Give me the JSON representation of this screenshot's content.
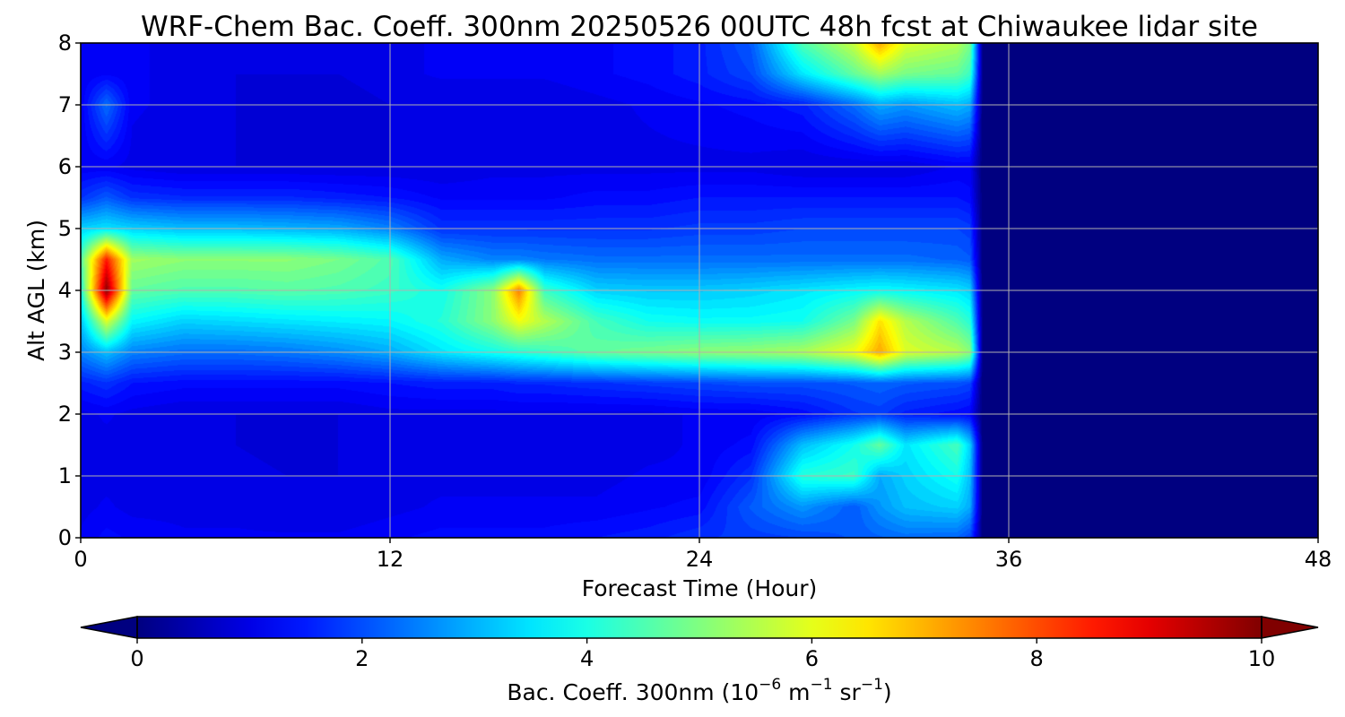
{
  "chart_data": {
    "type": "heatmap",
    "title": "WRF-Chem Bac. Coeff. 300nm  20250526 00UTC 48h fcst at Chiwaukee lidar site",
    "xlabel": "Forecast Time (Hour)",
    "ylabel": "Alt AGL (km)",
    "xlim": [
      0,
      48
    ],
    "ylim": [
      0,
      8
    ],
    "xticks": [
      "0",
      "12",
      "24",
      "36",
      "48"
    ],
    "yticks": [
      "0",
      "1",
      "2",
      "3",
      "4",
      "5",
      "6",
      "7",
      "8"
    ],
    "grid": true,
    "colormap": "jet",
    "colorbar": {
      "label_main": "Bac. Coeff. 300nm  (10",
      "exp1": "−6",
      "unit_m": " m",
      "exp2": "−1",
      "unit_sr": " sr",
      "exp3": "−1",
      "label_close": ")",
      "range": [
        0,
        10
      ],
      "ticks": [
        "0",
        "2",
        "4",
        "6",
        "8",
        "10"
      ],
      "extend": "both",
      "orientation": "horizontal"
    },
    "x": [
      0,
      1,
      2,
      4,
      6,
      8,
      10,
      12,
      14,
      16,
      17,
      18,
      20,
      22,
      24,
      26,
      28,
      30,
      31,
      32,
      34,
      34.5,
      35,
      36,
      48
    ],
    "y": [
      0,
      0.5,
      1,
      1.5,
      2,
      2.5,
      3,
      3.5,
      4,
      4.5,
      5,
      5.5,
      6,
      7,
      7.5,
      8
    ],
    "z": [
      [
        1.2,
        1.4,
        1.3,
        1.2,
        1.2,
        1.2,
        1.2,
        1.3,
        1.4,
        1.4,
        1.4,
        1.4,
        1.5,
        1.6,
        1.8,
        1.9,
        2.0,
        2.2,
        2.3,
        2.4,
        2.3,
        2.0,
        0,
        0,
        0
      ],
      [
        1.1,
        1.2,
        1.1,
        1.1,
        1.1,
        1.0,
        1.0,
        1.1,
        1.2,
        1.2,
        1.2,
        1.2,
        1.2,
        1.3,
        1.4,
        2.2,
        2.8,
        2.2,
        2.8,
        3.2,
        3.4,
        3.0,
        0,
        0,
        0
      ],
      [
        1.1,
        1.1,
        1.1,
        1.1,
        1.1,
        1.0,
        1.0,
        1.1,
        1.1,
        1.1,
        1.1,
        1.1,
        1.1,
        1.2,
        1.2,
        1.8,
        4.2,
        4.4,
        3.0,
        3.4,
        4.0,
        3.2,
        0,
        0,
        0
      ],
      [
        1.1,
        1.1,
        1.1,
        1.0,
        1.0,
        0.9,
        1.0,
        1.0,
        1.0,
        1.0,
        1.0,
        1.0,
        1.0,
        1.1,
        1.2,
        1.4,
        3.2,
        4.0,
        4.8,
        3.6,
        4.5,
        3.4,
        0,
        0,
        0
      ],
      [
        1.1,
        1.2,
        1.1,
        1.0,
        1.0,
        1.0,
        1.0,
        1.1,
        1.1,
        1.1,
        1.1,
        1.1,
        1.1,
        1.1,
        1.2,
        1.2,
        1.4,
        1.8,
        1.9,
        1.6,
        1.4,
        1.3,
        0,
        0,
        0
      ],
      [
        1.6,
        1.8,
        1.5,
        1.4,
        1.4,
        1.4,
        1.4,
        1.5,
        1.6,
        1.6,
        1.7,
        1.7,
        1.8,
        1.9,
        2.0,
        2.1,
        2.1,
        2.2,
        2.3,
        2.2,
        2.1,
        2.0,
        0,
        0,
        0
      ],
      [
        2.6,
        3.2,
        2.6,
        2.4,
        2.4,
        2.5,
        2.7,
        3.0,
        3.6,
        4.0,
        4.2,
        4.4,
        4.8,
        5.0,
        5.2,
        5.3,
        5.5,
        6.2,
        7.2,
        6.0,
        5.6,
        5.2,
        0,
        0,
        0
      ],
      [
        3.2,
        6.0,
        3.8,
        3.4,
        3.5,
        3.6,
        3.7,
        3.8,
        4.2,
        5.2,
        6.2,
        5.6,
        4.5,
        4.0,
        3.9,
        3.9,
        4.0,
        5.0,
        6.6,
        5.6,
        4.6,
        4.2,
        0,
        0,
        0
      ],
      [
        4.0,
        10.0,
        4.8,
        4.6,
        4.6,
        4.7,
        4.6,
        4.4,
        4.0,
        5.2,
        7.6,
        4.4,
        3.4,
        3.3,
        3.3,
        3.4,
        3.6,
        3.8,
        3.9,
        3.8,
        3.6,
        3.4,
        0,
        0,
        0
      ],
      [
        4.6,
        8.6,
        5.4,
        5.2,
        5.2,
        5.2,
        5.0,
        4.6,
        3.0,
        2.6,
        2.6,
        2.5,
        2.4,
        2.4,
        2.4,
        2.4,
        2.4,
        2.4,
        2.4,
        2.4,
        2.3,
        2.2,
        0,
        0,
        0
      ],
      [
        3.4,
        3.6,
        3.4,
        3.2,
        3.2,
        3.1,
        3.0,
        2.6,
        1.8,
        1.8,
        1.8,
        1.8,
        1.8,
        1.8,
        1.9,
        1.9,
        2.0,
        2.0,
        2.0,
        2.0,
        2.0,
        1.9,
        0,
        0,
        0
      ],
      [
        1.8,
        2.2,
        1.8,
        1.7,
        1.7,
        1.7,
        1.6,
        1.5,
        1.3,
        1.3,
        1.3,
        1.3,
        1.4,
        1.4,
        1.5,
        1.5,
        1.5,
        1.5,
        1.5,
        1.5,
        1.5,
        1.4,
        0,
        0,
        0
      ],
      [
        1.2,
        1.2,
        1.1,
        1.0,
        1.0,
        1.0,
        1.0,
        1.0,
        1.0,
        1.1,
        1.1,
        1.1,
        1.1,
        1.1,
        1.1,
        1.1,
        1.0,
        1.0,
        1.0,
        1.0,
        1.2,
        1.2,
        0,
        0,
        0
      ],
      [
        1.2,
        2.4,
        1.2,
        1.1,
        1.0,
        0.9,
        0.9,
        1.0,
        1.0,
        1.0,
        1.0,
        1.0,
        1.1,
        1.2,
        1.3,
        1.4,
        1.6,
        2.4,
        3.0,
        2.8,
        3.2,
        3.0,
        0,
        0,
        0
      ],
      [
        1.2,
        1.3,
        1.2,
        1.1,
        1.0,
        1.0,
        1.0,
        1.1,
        1.2,
        1.2,
        1.2,
        1.2,
        1.3,
        1.4,
        1.6,
        2.0,
        3.6,
        4.8,
        5.4,
        5.0,
        4.8,
        4.4,
        0,
        0,
        0
      ],
      [
        1.2,
        1.2,
        1.2,
        1.1,
        1.0,
        1.0,
        1.0,
        1.1,
        1.2,
        1.2,
        1.2,
        1.2,
        1.3,
        1.4,
        1.6,
        2.2,
        4.6,
        5.8,
        7.2,
        6.0,
        5.6,
        5.0,
        0,
        0,
        0
      ]
    ]
  }
}
